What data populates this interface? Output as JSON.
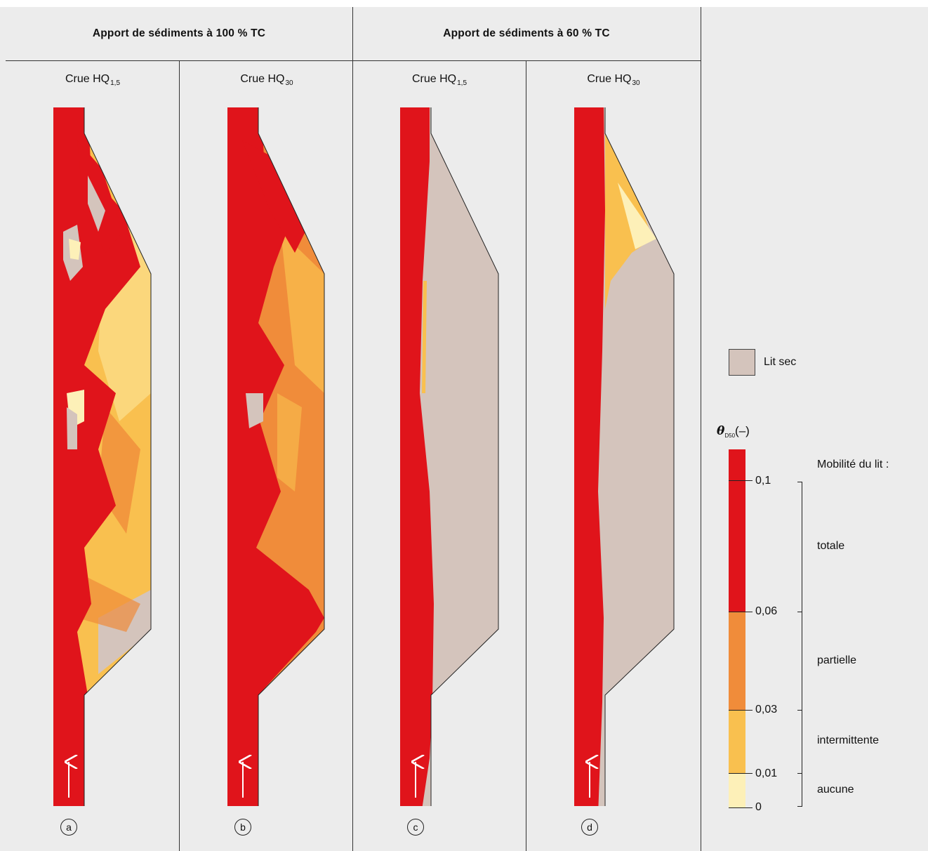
{
  "headers": {
    "group1": "Apport de sédiments à 100 % TC",
    "group2": "Apport de sédiments à 60 % TC"
  },
  "columns": [
    {
      "title_main": "Crue HQ",
      "title_sub": "1,5",
      "letter": "a"
    },
    {
      "title_main": "Crue HQ",
      "title_sub": "30",
      "letter": "b"
    },
    {
      "title_main": "Crue HQ",
      "title_sub": "1,5",
      "letter": "c"
    },
    {
      "title_main": "Crue HQ",
      "title_sub": "30",
      "letter": "d"
    }
  ],
  "legend": {
    "dry_bed_label": "Lit sec",
    "theta_symbol": "θ",
    "theta_sub": "D50",
    "theta_unit": "(–)",
    "mobility_title": "Mobilité du lit :",
    "ticks": [
      "0,1",
      "0,06",
      "0,03",
      "0,01",
      "0"
    ],
    "classes": [
      "totale",
      "partielle",
      "intermittente",
      "aucune"
    ]
  },
  "colors": {
    "total": "#e0141b",
    "partial": "#f08c3a",
    "intermittent": "#f9c04f",
    "none": "#fdf0b8",
    "dry": "#d4c4bc",
    "background": "#ececec"
  }
}
